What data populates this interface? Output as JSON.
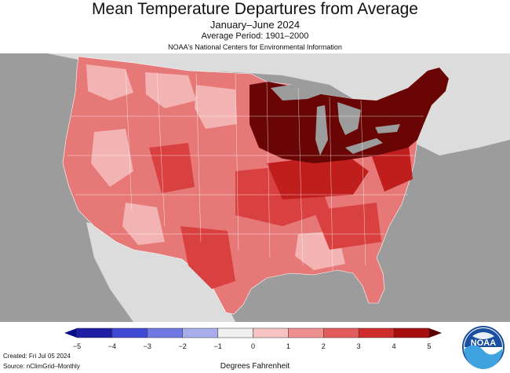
{
  "header": {
    "title": "Mean Temperature Departures from Average",
    "subtitle": "January–June 2024",
    "period": "Average Period: 1901–2000",
    "source": "NOAA's National Centers for Environmental Information"
  },
  "legend": {
    "ticks": [
      "−5",
      "−4",
      "−3",
      "−2",
      "−1",
      "0",
      "1",
      "2",
      "3",
      "4",
      "5"
    ],
    "colors": [
      "#1f1fa6",
      "#3f49d4",
      "#6f78e0",
      "#a7aceb",
      "#f0f0f0",
      "#f6c2c2",
      "#ef8f8f",
      "#e35c5c",
      "#cf2c2c",
      "#a60d0d"
    ],
    "title": "Degrees Fahrenheit"
  },
  "footer": {
    "created": "Created: Fri Jul 05 2024",
    "source": "Source: nClimGrid–Monthly"
  },
  "logo": {
    "text": "NOAA"
  },
  "map": {
    "ocean_color": "#9c9c9c",
    "land_color": "#dcdcdc",
    "colors": {
      "light": "#f3b3b3",
      "medium": "#e77878",
      "strong": "#d94040",
      "deep": "#c01d1d",
      "extreme": "#6a0505"
    }
  }
}
